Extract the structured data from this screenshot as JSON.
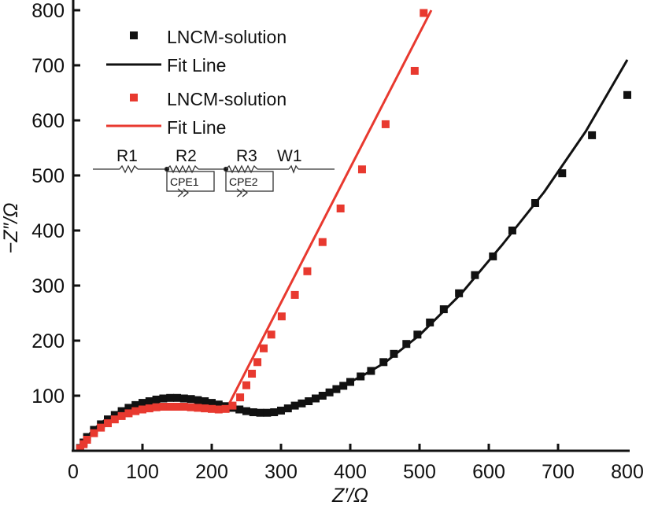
{
  "chart_data": {
    "type": "scatter",
    "xlabel": "Z′/Ω",
    "ylabel": "−Z″/Ω",
    "xlim": [
      0,
      800
    ],
    "ylim": [
      0,
      800
    ],
    "xticks": [
      "0",
      "100",
      "200",
      "300",
      "400",
      "500",
      "600",
      "700",
      "800"
    ],
    "yticks": [
      "100",
      "200",
      "300",
      "400",
      "500",
      "600",
      "700",
      "800"
    ],
    "grid": false,
    "legend_position": "top-left",
    "legend": [
      "LNCM-solution",
      "Fit Line",
      "LNCM-solution",
      "Fit Line"
    ],
    "circuit": {
      "labels": [
        "R1",
        "R2",
        "R3",
        "W1"
      ],
      "elements": [
        "CPE1",
        "CPE2"
      ]
    },
    "series": [
      {
        "name": "LNCM-solution",
        "kind": "points",
        "color": "#111111",
        "x": [
          10,
          15,
          20,
          30,
          40,
          50,
          60,
          70,
          80,
          90,
          100,
          110,
          120,
          130,
          140,
          150,
          160,
          170,
          180,
          190,
          200,
          210,
          220,
          230,
          240,
          250,
          260,
          270,
          280,
          290,
          300,
          310,
          320,
          330,
          340,
          350,
          360,
          370,
          380,
          390,
          400,
          415,
          430,
          448,
          463,
          481,
          497,
          515,
          535,
          557,
          580,
          606,
          634,
          667,
          706,
          749,
          800
        ],
        "y": [
          5,
          15,
          25,
          38,
          48,
          57,
          65,
          72,
          78,
          83,
          87,
          90,
          93,
          95,
          96,
          96,
          95,
          94,
          92,
          90,
          87,
          84,
          81,
          78,
          75,
          72,
          70,
          69,
          69,
          70,
          73,
          77,
          82,
          86,
          90,
          95,
          100,
          106,
          112,
          118,
          125,
          135,
          145,
          161,
          176,
          194,
          211,
          233,
          257,
          286,
          319,
          353,
          400,
          450,
          504,
          573,
          646
        ]
      },
      {
        "name": "Fit Line",
        "kind": "line",
        "color": "#111111",
        "x": [
          10,
          20,
          30,
          45,
          60,
          80,
          100,
          125,
          150,
          175,
          200,
          225,
          250,
          280,
          300,
          320,
          350,
          380,
          420,
          450,
          500,
          560,
          620,
          680,
          740,
          800
        ],
        "y": [
          0,
          25,
          40,
          55,
          66,
          78,
          87,
          92,
          94,
          92,
          86,
          80,
          73,
          69,
          72,
          80,
          95,
          112,
          138,
          160,
          210,
          285,
          375,
          470,
          580,
          710
        ]
      },
      {
        "name": "LNCM-solution",
        "kind": "points",
        "color": "#e8392f",
        "x": [
          10,
          15,
          20,
          30,
          40,
          50,
          60,
          70,
          80,
          90,
          100,
          110,
          120,
          130,
          140,
          150,
          160,
          170,
          180,
          190,
          200,
          210,
          220,
          230,
          241,
          250,
          258,
          266,
          275,
          286,
          301,
          320,
          338,
          360,
          386,
          417,
          451,
          493,
          506
        ],
        "y": [
          4,
          12,
          20,
          32,
          42,
          50,
          57,
          63,
          68,
          72,
          75,
          77,
          79,
          80,
          80,
          80,
          80,
          79,
          78,
          77,
          76,
          75,
          76,
          82,
          97,
          119,
          140,
          161,
          186,
          211,
          244,
          283,
          326,
          379,
          440,
          511,
          593,
          690,
          795
        ]
      },
      {
        "name": "Fit Line",
        "kind": "line",
        "color": "#e8392f",
        "x": [
          10,
          20,
          30,
          45,
          60,
          80,
          100,
          125,
          150,
          175,
          200,
          215,
          225,
          300,
          400,
          517
        ],
        "y": [
          0,
          22,
          34,
          48,
          58,
          68,
          75,
          79,
          80,
          79,
          77,
          78,
          85,
          269,
          514,
          800
        ]
      }
    ]
  }
}
